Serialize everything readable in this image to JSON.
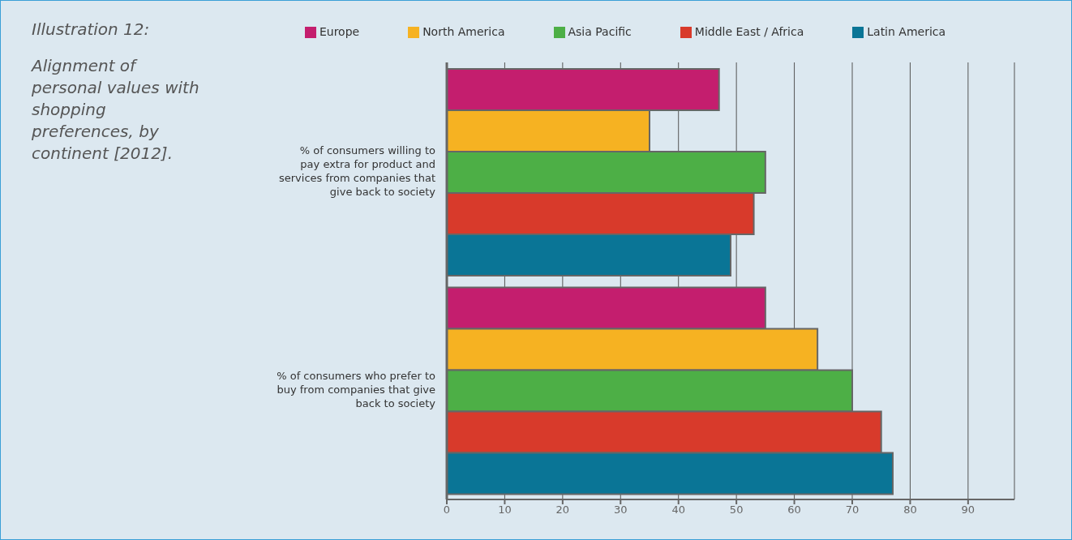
{
  "chart_data": {
    "type": "bar",
    "orientation": "horizontal",
    "title": "Illustration 12:",
    "subtitle": "Alignment of personal values with shopping preferences, by continent [2012].",
    "categories": [
      "% of consumers willing to pay extra for product and services from companies that give back to society",
      "% of consumers who prefer to buy from companies that give back to society"
    ],
    "series": [
      {
        "name": "Europe",
        "color": "#c41e6e",
        "values": [
          47,
          55
        ]
      },
      {
        "name": "North America",
        "color": "#f6b222",
        "values": [
          35,
          64
        ]
      },
      {
        "name": "Asia Pacific",
        "color": "#4daf46",
        "values": [
          55,
          70
        ]
      },
      {
        "name": "Middle East / Africa",
        "color": "#d83a2b",
        "values": [
          53,
          75
        ]
      },
      {
        "name": "Latin America",
        "color": "#0a7596",
        "values": [
          49,
          77
        ]
      }
    ],
    "xlim": [
      0,
      98
    ],
    "xticks": [
      0,
      10,
      20,
      30,
      40,
      50,
      60,
      70,
      80,
      90
    ],
    "grid": "x",
    "legend": "top"
  }
}
